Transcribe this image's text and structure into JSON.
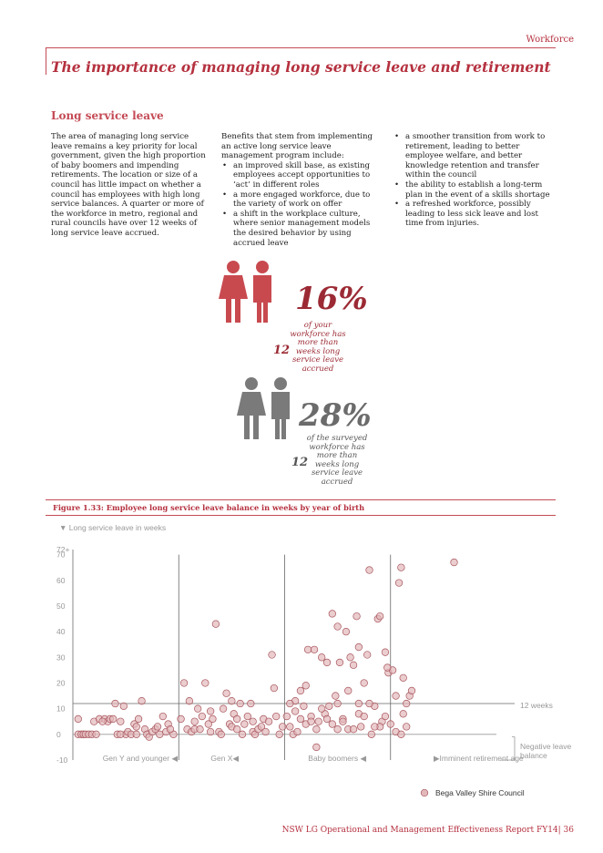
{
  "header": {
    "section": "Workforce",
    "title": "The importance of managing long service leave and retirement"
  },
  "subheading": "Long service leave",
  "column1": {
    "text": "The area of managing long service leave remains a key priority for local government, given the high proportion of baby boomers and impending retirements. The location or size of a council has little impact on whether a council has employees with high long service balances. A quarter or more of the workforce in metro, regional and rural councils have over 12 weeks of long service leave accrued."
  },
  "column2": {
    "intro": "Benefits that stem from implementing an active long service leave management program include:",
    "bullets": [
      "an improved skill base, as existing employees accept opportunities to ‘act’ in different roles",
      " a more engaged workforce, due to the variety of work on offer",
      "a shift in the workplace culture, where senior management models the desired behavior by using accrued leave"
    ]
  },
  "column3": {
    "bullets": [
      "a smoother transition from work to retirement, leading to better employee welfare, and better knowledge retention and transfer within the council",
      "the ability to establish a long-term plan in the event of a skills shortage",
      "a refreshed workforce, possibly leading to less sick leave and lost time from injuries."
    ]
  },
  "stats": [
    {
      "percent": "16%",
      "line1": "of your",
      "line2": "workforce has",
      "line3": "more than",
      "number": "12",
      "line4": "weeks long",
      "line5": "service leave",
      "line6": "accrued",
      "color": "#c84a4f"
    },
    {
      "percent": "28%",
      "line1": "of the surveyed",
      "line2": "workforce has",
      "line3": "more than",
      "number": "12",
      "line4": "weeks long",
      "line5": "service leave",
      "line6": "accrued",
      "color": "#7a7a7a"
    }
  ],
  "figure": {
    "caption": "Figure 1.33: Employee long service leave balance in weeks by year of birth"
  },
  "chart_data": {
    "type": "scatter",
    "ylabel": "▼ Long service leave in weeks",
    "yticks": [
      "72+",
      "70",
      "60",
      "50",
      "40",
      "30",
      "20",
      "10",
      "0",
      "-10"
    ],
    "ylim": [
      -10,
      72
    ],
    "threshold": {
      "value": 12,
      "label": "12 weeks"
    },
    "negative_label_line1": "Negative leave",
    "negative_label_line2": "balance",
    "x_groups": [
      "Gen Y and younger ◀",
      "Gen X◀",
      "Baby boomers ◀",
      "▶Imminent retirement age"
    ],
    "group_dividers": [
      1,
      2,
      3
    ],
    "group_width": [
      0,
      4
    ],
    "legend": "Bega Valley Shire Council",
    "point_color": "#e2b8bb",
    "point_stroke": "#a7565d",
    "series": [
      {
        "name": "Bega Valley Shire Council",
        "points": [
          [
            0.05,
            0
          ],
          [
            0.08,
            0
          ],
          [
            0.1,
            0
          ],
          [
            0.12,
            0
          ],
          [
            0.15,
            0
          ],
          [
            0.2,
            5
          ],
          [
            0.25,
            6
          ],
          [
            0.3,
            6
          ],
          [
            0.33,
            5
          ],
          [
            0.35,
            6
          ],
          [
            0.38,
            6
          ],
          [
            0.4,
            12
          ],
          [
            0.42,
            0
          ],
          [
            0.45,
            5
          ],
          [
            0.48,
            11
          ],
          [
            0.5,
            0
          ],
          [
            0.52,
            1
          ],
          [
            0.55,
            0
          ],
          [
            0.58,
            4
          ],
          [
            0.6,
            3
          ],
          [
            0.62,
            6
          ],
          [
            0.65,
            13
          ],
          [
            0.68,
            2
          ],
          [
            0.7,
            0
          ],
          [
            0.72,
            -1
          ],
          [
            0.75,
            1
          ],
          [
            0.78,
            2
          ],
          [
            0.8,
            3
          ],
          [
            0.82,
            0
          ],
          [
            0.85,
            7
          ],
          [
            0.88,
            1
          ],
          [
            0.9,
            4
          ],
          [
            0.95,
            0
          ],
          [
            0.05,
            6
          ],
          [
            0.28,
            5
          ],
          [
            0.18,
            0
          ],
          [
            0.22,
            0
          ],
          [
            0.6,
            0
          ],
          [
            0.92,
            2
          ],
          [
            0.45,
            0
          ],
          [
            1.02,
            6
          ],
          [
            1.05,
            20
          ],
          [
            1.08,
            2
          ],
          [
            1.1,
            13
          ],
          [
            1.12,
            1
          ],
          [
            1.15,
            2
          ],
          [
            1.18,
            10
          ],
          [
            1.2,
            2
          ],
          [
            1.22,
            7
          ],
          [
            1.25,
            20
          ],
          [
            1.28,
            4
          ],
          [
            1.3,
            1
          ],
          [
            1.32,
            6
          ],
          [
            1.35,
            43
          ],
          [
            1.38,
            1
          ],
          [
            1.4,
            0
          ],
          [
            1.42,
            10
          ],
          [
            1.45,
            16
          ],
          [
            1.48,
            4
          ],
          [
            1.5,
            3
          ],
          [
            1.52,
            8
          ],
          [
            1.55,
            2
          ],
          [
            1.58,
            12
          ],
          [
            1.6,
            0
          ],
          [
            1.62,
            4
          ],
          [
            1.65,
            7
          ],
          [
            1.68,
            12
          ],
          [
            1.7,
            1
          ],
          [
            1.72,
            0
          ],
          [
            1.75,
            2
          ],
          [
            1.78,
            3
          ],
          [
            1.8,
            6
          ],
          [
            1.82,
            1
          ],
          [
            1.85,
            5
          ],
          [
            1.88,
            31
          ],
          [
            1.9,
            18
          ],
          [
            1.92,
            7
          ],
          [
            1.95,
            0
          ],
          [
            1.98,
            3
          ],
          [
            1.15,
            5
          ],
          [
            1.3,
            9
          ],
          [
            1.5,
            13
          ],
          [
            1.7,
            5
          ],
          [
            1.55,
            6
          ],
          [
            2.02,
            7
          ],
          [
            2.05,
            3
          ],
          [
            2.08,
            0
          ],
          [
            2.1,
            9
          ],
          [
            2.12,
            1
          ],
          [
            2.15,
            6
          ],
          [
            2.18,
            11
          ],
          [
            2.2,
            4
          ],
          [
            2.22,
            33
          ],
          [
            2.25,
            7
          ],
          [
            2.28,
            33
          ],
          [
            2.3,
            2
          ],
          [
            2.32,
            5
          ],
          [
            2.35,
            30
          ],
          [
            2.38,
            8
          ],
          [
            2.4,
            28
          ],
          [
            2.42,
            11
          ],
          [
            2.45,
            47
          ],
          [
            2.48,
            15
          ],
          [
            2.5,
            42
          ],
          [
            2.52,
            28
          ],
          [
            2.55,
            6
          ],
          [
            2.58,
            40
          ],
          [
            2.6,
            2
          ],
          [
            2.62,
            30
          ],
          [
            2.65,
            27
          ],
          [
            2.68,
            46
          ],
          [
            2.7,
            34
          ],
          [
            2.72,
            3
          ],
          [
            2.75,
            20
          ],
          [
            2.78,
            31
          ],
          [
            2.8,
            64
          ],
          [
            2.82,
            0
          ],
          [
            2.85,
            11
          ],
          [
            2.88,
            45
          ],
          [
            2.9,
            46
          ],
          [
            2.92,
            5
          ],
          [
            2.95,
            32
          ],
          [
            2.98,
            24
          ],
          [
            2.1,
            13
          ],
          [
            2.3,
            -5
          ],
          [
            2.4,
            6
          ],
          [
            2.5,
            12
          ],
          [
            2.6,
            17
          ],
          [
            2.7,
            8
          ],
          [
            2.8,
            12
          ],
          [
            2.9,
            3
          ],
          [
            2.2,
            19
          ],
          [
            2.35,
            10
          ],
          [
            2.45,
            4
          ],
          [
            2.55,
            5
          ],
          [
            2.65,
            2
          ],
          [
            2.75,
            7
          ],
          [
            2.85,
            3
          ],
          [
            2.95,
            7
          ],
          [
            2.05,
            12
          ],
          [
            2.15,
            17
          ],
          [
            2.25,
            5
          ],
          [
            2.5,
            2
          ],
          [
            2.7,
            12
          ],
          [
            3.02,
            25
          ],
          [
            3.05,
            15
          ],
          [
            3.08,
            59
          ],
          [
            3.1,
            65
          ],
          [
            3.12,
            8
          ],
          [
            3.15,
            3
          ],
          [
            3.18,
            15
          ],
          [
            3.2,
            17
          ],
          [
            3.05,
            1
          ],
          [
            3.12,
            22
          ],
          [
            3.0,
            4
          ],
          [
            3.1,
            0
          ],
          [
            3.6,
            67
          ],
          [
            2.97,
            26
          ],
          [
            3.15,
            12
          ]
        ]
      }
    ]
  },
  "footer": "NSW LG Operational and Management Effectiveness Report FY14| 36"
}
